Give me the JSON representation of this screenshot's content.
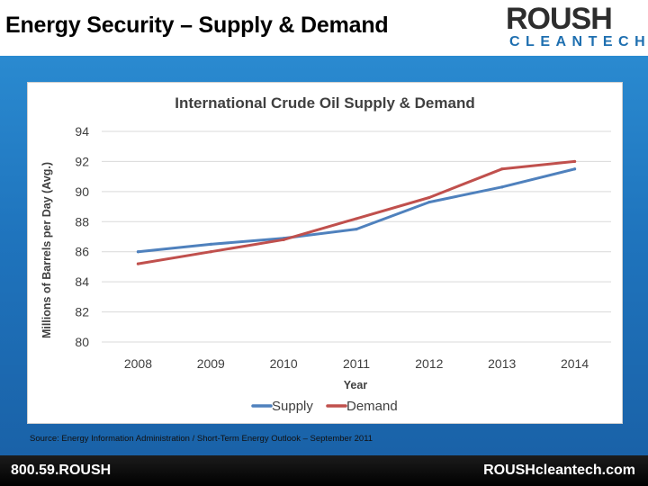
{
  "slide": {
    "title": "Energy Security – Supply & Demand",
    "source": "Source: Energy Information Administration / Short-Term Energy Outlook – September 2011"
  },
  "logo": {
    "top": "ROUSH",
    "bottom": "CLEANTECH"
  },
  "footer": {
    "phone": "800.59.ROUSH",
    "website": "ROUSHcleantech.com"
  },
  "colors": {
    "supply": "#4f81bd",
    "demand": "#c0504d",
    "panel": "#1f74bd"
  },
  "chart_data": {
    "type": "line",
    "title": "International Crude Oil Supply & Demand",
    "xlabel": "Year",
    "ylabel": "Millions of Barrels per Day (Avg.)",
    "categories": [
      "2008",
      "2009",
      "2010",
      "2011",
      "2012",
      "2013",
      "2014"
    ],
    "ylim": [
      80,
      94
    ],
    "yticks": [
      80,
      82,
      84,
      86,
      88,
      90,
      92,
      94
    ],
    "grid": true,
    "legend": "bottom",
    "series": [
      {
        "name": "Supply",
        "color": "#4f81bd",
        "values": [
          86.0,
          86.5,
          86.9,
          87.5,
          89.3,
          90.3,
          91.5
        ]
      },
      {
        "name": "Demand",
        "color": "#c0504d",
        "values": [
          85.2,
          86.0,
          86.8,
          88.2,
          89.6,
          91.5,
          92.0
        ]
      }
    ]
  }
}
